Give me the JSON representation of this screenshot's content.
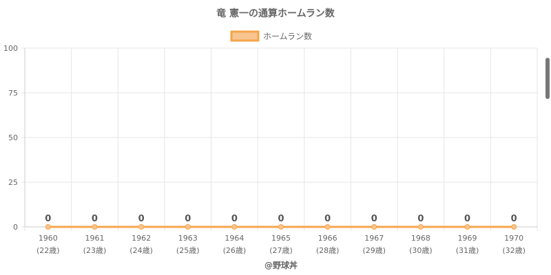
{
  "chart_data": {
    "type": "line",
    "title": "竜 憲一の通算ホームラン数",
    "xlabel": "@野球丼",
    "ylabel": "",
    "categories": [
      "1960",
      "1961",
      "1962",
      "1963",
      "1964",
      "1965",
      "1966",
      "1967",
      "1968",
      "1969",
      "1970"
    ],
    "category_sublabels": [
      "(22歳)",
      "(23歳)",
      "(24歳)",
      "(25歳)",
      "(26歳)",
      "(27歳)",
      "(28歳)",
      "(29歳)",
      "(30歳)",
      "(31歳)",
      "(32歳)"
    ],
    "series": [
      {
        "name": "ホームラン数",
        "values": [
          0,
          0,
          0,
          0,
          0,
          0,
          0,
          0,
          0,
          0,
          0
        ]
      }
    ],
    "ylim": [
      0,
      100
    ],
    "yticks": [
      0,
      25,
      50,
      75,
      100
    ],
    "grid": true,
    "legend": "top-center",
    "data_labels": true
  },
  "colors": {
    "line": "#f5a54a",
    "fill": "#f8c591",
    "grid": "#e6e6e6",
    "text": "#666666"
  }
}
